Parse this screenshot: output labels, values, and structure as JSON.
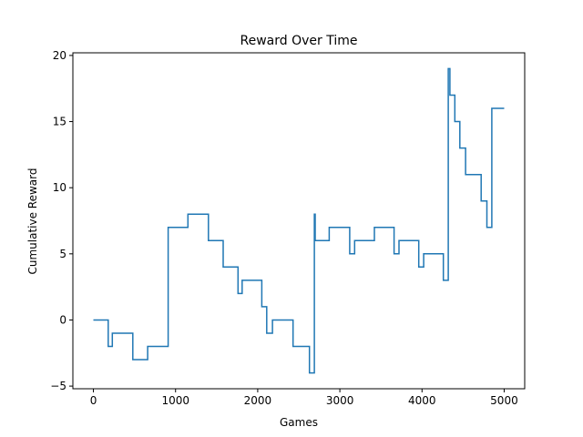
{
  "chart_data": {
    "type": "line",
    "title": "Reward Over Time",
    "xlabel": "Games",
    "ylabel": "Cumulative Reward",
    "xlim": [
      -250,
      5250
    ],
    "ylim": [
      -5.2,
      20.2
    ],
    "xticks": [
      0,
      1000,
      2000,
      3000,
      4000,
      5000
    ],
    "yticks": [
      -5,
      0,
      5,
      10,
      15,
      20
    ],
    "grid": false,
    "series_color": "#1f77b4",
    "series": [
      {
        "step": "post",
        "points": [
          [
            0,
            0
          ],
          [
            180,
            -2
          ],
          [
            230,
            -1
          ],
          [
            480,
            -3
          ],
          [
            660,
            -2
          ],
          [
            910,
            7
          ],
          [
            1150,
            8
          ],
          [
            1400,
            6
          ],
          [
            1580,
            4
          ],
          [
            1760,
            2
          ],
          [
            1810,
            3
          ],
          [
            2050,
            1
          ],
          [
            2110,
            -1
          ],
          [
            2180,
            0
          ],
          [
            2430,
            -2
          ],
          [
            2630,
            -4
          ],
          [
            2690,
            8
          ],
          [
            2700,
            6
          ],
          [
            2870,
            7
          ],
          [
            3120,
            5
          ],
          [
            3180,
            6
          ],
          [
            3420,
            7
          ],
          [
            3660,
            5
          ],
          [
            3720,
            6
          ],
          [
            3960,
            4
          ],
          [
            4020,
            5
          ],
          [
            4260,
            3
          ],
          [
            4320,
            19
          ],
          [
            4340,
            17
          ],
          [
            4400,
            15
          ],
          [
            4460,
            13
          ],
          [
            4530,
            11
          ],
          [
            4720,
            9
          ],
          [
            4790,
            7
          ],
          [
            4850,
            16
          ],
          [
            5000,
            16
          ]
        ]
      }
    ]
  }
}
